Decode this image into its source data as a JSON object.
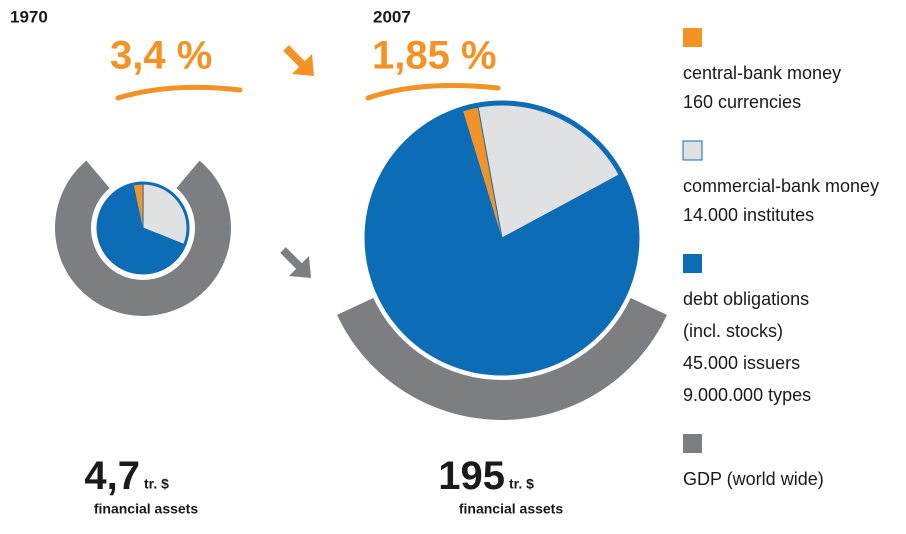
{
  "chart_data": [
    {
      "type": "pie",
      "title": "1970",
      "values": [
        3.4,
        31,
        65.6
      ],
      "value_labels": [
        "3,4 %",
        null,
        null
      ],
      "total": {
        "value": 4.7,
        "label": "4,7"
      },
      "total_unit": "tr. $",
      "total_caption": "financial assets"
    },
    {
      "type": "pie",
      "title": "2007",
      "values": [
        1.85,
        20,
        78.15
      ],
      "value_labels": [
        "1,85 %",
        null,
        null
      ],
      "total": 195,
      "total_unit": "tr. $",
      "total_caption": "financial assets"
    }
  ],
  "legend": [
    {
      "label": "central-bank money",
      "details": [
        "160 currencies"
      ],
      "color": "#f39325"
    },
    {
      "label": "commercial-bank money",
      "details": [
        "14.000 institutes"
      ],
      "color": "#e0e1e3"
    },
    {
      "label": "debt obligations",
      "details": [
        "(incl. stocks)",
        "45.000 issuers",
        "9.000.000 types"
      ],
      "color": "#0d6cb6"
    },
    {
      "label": "GDP (world wide)",
      "details": [],
      "color": "#7d7e82"
    }
  ]
}
